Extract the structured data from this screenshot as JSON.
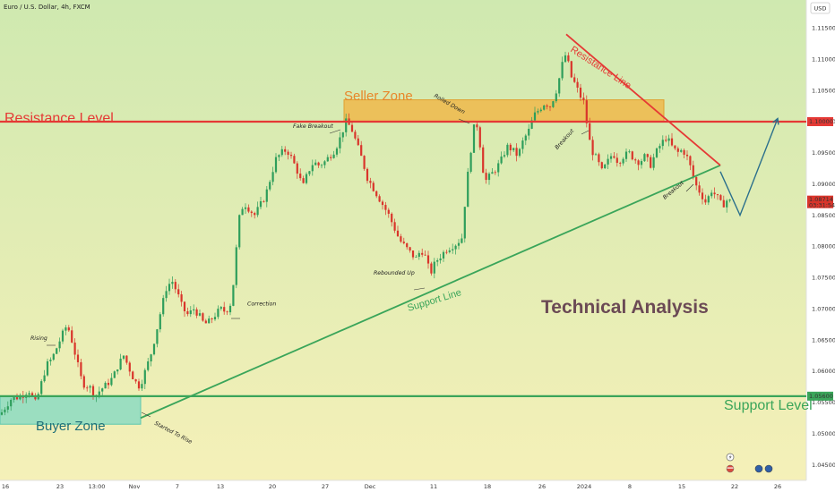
{
  "header": {
    "title": "Euro / U.S. Dollar, 4h, FXCM",
    "currency_badge": "USD"
  },
  "colors": {
    "bg_top": "#cfe9b0",
    "bg_bottom": "#f5f0b8",
    "up_candle": "#2e9e5b",
    "down_candle": "#d9352b",
    "resistance_line": "#e53935",
    "support_line": "#3aa55a",
    "seller_zone_fill": "#f0b84a",
    "buyer_zone_fill": "#7fd8c3",
    "projection": "#2a6f8c",
    "axis_text": "#333333"
  },
  "icons": [
    "lightning-icon",
    "flag-us-icon",
    "flag-eu-icon",
    "calendar-icon",
    "calendar-icon"
  ],
  "chart_data": {
    "type": "candlestick",
    "symbol": "Euro / U.S. Dollar",
    "timeframe": "4h",
    "source": "FXCM",
    "ylim": [
      1.0425,
      1.1195
    ],
    "y_ticks": [
      "1.11500",
      "1.11000",
      "1.10500",
      "1.10000",
      "1.09500",
      "1.09000",
      "1.08500",
      "1.08000",
      "1.07500",
      "1.07000",
      "1.06500",
      "1.06000",
      "1.05500",
      "1.05000",
      "1.04500"
    ],
    "x_ticks": [
      "16",
      "23",
      "13:00",
      "Nov",
      "7",
      "13",
      "20",
      "27",
      "Dec",
      "11",
      "18",
      "26",
      "2024",
      "8",
      "15",
      "22",
      "26"
    ],
    "price_badges": {
      "resistance": "1.10000",
      "support": "1.05600",
      "last_price": "1.08714",
      "countdown": "03:31:54"
    },
    "close_path": [
      [
        0,
        1.053
      ],
      [
        12,
        1.0555
      ],
      [
        24,
        1.056
      ],
      [
        32,
        1.057
      ],
      [
        40,
        1.0548
      ],
      [
        46,
        1.058
      ],
      [
        52,
        1.061
      ],
      [
        58,
        1.062
      ],
      [
        64,
        1.064
      ],
      [
        70,
        1.066
      ],
      [
        75,
        1.0675
      ],
      [
        80,
        1.065
      ],
      [
        86,
        1.0615
      ],
      [
        92,
        1.058
      ],
      [
        100,
        1.0575
      ],
      [
        106,
        1.056
      ],
      [
        112,
        1.057
      ],
      [
        120,
        1.058
      ],
      [
        126,
        1.059
      ],
      [
        132,
        1.061
      ],
      [
        138,
        1.0625
      ],
      [
        144,
        1.0605
      ],
      [
        150,
        1.0585
      ],
      [
        156,
        1.0575
      ],
      [
        162,
        1.06
      ],
      [
        168,
        1.0625
      ],
      [
        174,
        1.066
      ],
      [
        180,
        1.07
      ],
      [
        186,
        1.0735
      ],
      [
        192,
        1.0745
      ],
      [
        198,
        1.0725
      ],
      [
        204,
        1.07
      ],
      [
        210,
        1.069
      ],
      [
        216,
        1.07
      ],
      [
        222,
        1.069
      ],
      [
        228,
        1.0675
      ],
      [
        234,
        1.068
      ],
      [
        240,
        1.069
      ],
      [
        246,
        1.07
      ],
      [
        252,
        1.0695
      ],
      [
        258,
        1.071
      ],
      [
        262,
        1.076
      ],
      [
        266,
        1.084
      ],
      [
        272,
        1.087
      ],
      [
        278,
        1.086
      ],
      [
        284,
        1.085
      ],
      [
        290,
        1.0865
      ],
      [
        296,
        1.088
      ],
      [
        302,
        1.091
      ],
      [
        308,
        1.094
      ],
      [
        314,
        1.095
      ],
      [
        320,
        1.0955
      ],
      [
        326,
        1.094
      ],
      [
        332,
        1.092
      ],
      [
        338,
        1.0895
      ],
      [
        344,
        1.092
      ],
      [
        350,
        1.0935
      ],
      [
        356,
        1.093
      ],
      [
        362,
        1.0935
      ],
      [
        368,
        1.0945
      ],
      [
        374,
        1.0955
      ],
      [
        380,
        1.0975
      ],
      [
        386,
        1.1
      ],
      [
        392,
        1.099
      ],
      [
        398,
        1.0965
      ],
      [
        404,
        1.094
      ],
      [
        410,
        1.091
      ],
      [
        416,
        1.0895
      ],
      [
        422,
        1.088
      ],
      [
        428,
        1.0865
      ],
      [
        434,
        1.085
      ],
      [
        440,
        1.083
      ],
      [
        446,
        1.081
      ],
      [
        452,
        1.08
      ],
      [
        458,
        1.079
      ],
      [
        464,
        1.078
      ],
      [
        470,
        1.0795
      ],
      [
        476,
        1.078
      ],
      [
        480,
        1.0755
      ],
      [
        486,
        1.0775
      ],
      [
        492,
        1.0785
      ],
      [
        498,
        1.0795
      ],
      [
        504,
        1.08
      ],
      [
        510,
        1.0805
      ],
      [
        516,
        1.0815
      ],
      [
        520,
        1.089
      ],
      [
        526,
        1.096
      ],
      [
        530,
        1.1
      ],
      [
        534,
        1.099
      ],
      [
        538,
        1.093
      ],
      [
        542,
        1.0905
      ],
      [
        548,
        1.0915
      ],
      [
        554,
        1.0925
      ],
      [
        560,
        1.094
      ],
      [
        566,
        1.096
      ],
      [
        572,
        1.0955
      ],
      [
        578,
        1.0945
      ],
      [
        584,
        1.097
      ],
      [
        590,
        1.0985
      ],
      [
        596,
        1.101
      ],
      [
        602,
        1.102
      ],
      [
        608,
        1.103
      ],
      [
        614,
        1.1025
      ],
      [
        620,
        1.1045
      ],
      [
        626,
        1.108
      ],
      [
        630,
        1.111
      ],
      [
        634,
        1.1095
      ],
      [
        638,
        1.107
      ],
      [
        642,
        1.106
      ],
      [
        648,
        1.104
      ],
      [
        652,
        1.103
      ],
      [
        656,
        1.0985
      ],
      [
        660,
        1.0955
      ],
      [
        666,
        1.094
      ],
      [
        672,
        1.092
      ],
      [
        678,
        1.0935
      ],
      [
        684,
        1.095
      ],
      [
        690,
        1.0935
      ],
      [
        696,
        1.0945
      ],
      [
        702,
        1.095
      ],
      [
        708,
        1.094
      ],
      [
        714,
        1.0935
      ],
      [
        720,
        1.0945
      ],
      [
        726,
        1.093
      ],
      [
        732,
        1.095
      ],
      [
        738,
        1.0965
      ],
      [
        744,
        1.0975
      ],
      [
        750,
        1.096
      ],
      [
        756,
        1.095
      ],
      [
        762,
        1.0955
      ],
      [
        768,
        1.094
      ],
      [
        772,
        1.092
      ],
      [
        776,
        1.09
      ],
      [
        782,
        1.0885
      ],
      [
        788,
        1.087
      ],
      [
        794,
        1.089
      ],
      [
        800,
        1.088
      ],
      [
        806,
        1.0865
      ],
      [
        812,
        1.0875
      ],
      [
        816,
        1.0871
      ]
    ],
    "levels": [
      {
        "name": "Resistance Level",
        "price": 1.1,
        "color": "#e53935",
        "badge": "1.10000"
      },
      {
        "name": "Support Level",
        "price": 1.056,
        "color": "#3aa55a",
        "badge": "1.05600"
      }
    ],
    "zones": [
      {
        "name": "Seller Zone",
        "x_start": 384,
        "x_end": 741,
        "price_low": 1.1,
        "price_high": 1.1035
      },
      {
        "name": "Buyer Zone",
        "x_start": 0,
        "x_end": 157,
        "price_low": 1.0515,
        "price_high": 1.056
      }
    ],
    "trendlines": [
      {
        "name": "Support Line",
        "from": [
          157,
          1.0525
        ],
        "to": [
          804,
          1.093
        ]
      },
      {
        "name": "Resistance Line",
        "from": [
          632,
          1.114
        ],
        "to": [
          804,
          1.093
        ]
      }
    ],
    "projection": [
      [
        804,
        1.092
      ],
      [
        826,
        1.085
      ],
      [
        868,
        1.1005
      ]
    ],
    "annotations": [
      {
        "text": "Rising",
        "x": 34,
        "y": 1.065
      },
      {
        "text": "Correction",
        "x": 276,
        "y": 1.0705
      },
      {
        "text": "Fake Breakout",
        "x": 327,
        "y": 1.099
      },
      {
        "text": "Rolled Down",
        "x": 484,
        "y": 1.104
      },
      {
        "text": "Breakout",
        "x": 622,
        "y": 1.0955
      },
      {
        "text": "Rebounded Up",
        "x": 417,
        "y": 1.0755
      },
      {
        "text": "Started To Rise",
        "x": 172,
        "y": 1.0515
      },
      {
        "text": "Breakout",
        "x": 742,
        "y": 1.0875
      }
    ],
    "labels": {
      "seller_zone": "Seller Zone",
      "buyer_zone": "Buyer Zone",
      "resistance_level": "Resistance Level",
      "support_level": "Support Level",
      "resistance_line": "Resistance Line",
      "support_line": "Support Line",
      "technical_analysis": "Technical Analysis"
    }
  }
}
